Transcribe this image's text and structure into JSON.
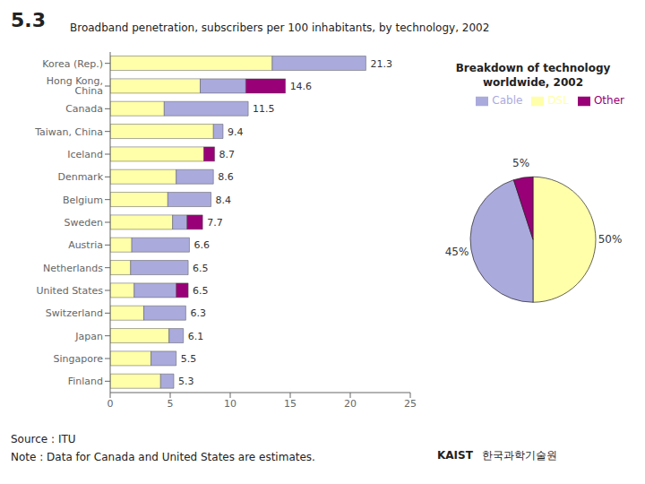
{
  "chart_data": [
    {
      "type": "bar",
      "orientation": "horizontal",
      "stacked": true,
      "title": "Broadband penetration, subscribers per 100 inhabitants, by technology, 2002",
      "categories": [
        "Korea (Rep.)",
        "Hong Kong, China",
        "Canada",
        "Taiwan, China",
        "Iceland",
        "Denmark",
        "Belgium",
        "Sweden",
        "Austria",
        "Netherlands",
        "United States",
        "Switzerland",
        "Japan",
        "Singapore",
        "Finland"
      ],
      "series": [
        {
          "name": "DSL",
          "color": "#ffffaa",
          "values": [
            13.5,
            7.5,
            4.5,
            8.6,
            7.8,
            5.5,
            4.8,
            5.2,
            1.8,
            1.7,
            2.0,
            2.8,
            4.9,
            3.4,
            4.2
          ]
        },
        {
          "name": "Cable",
          "color": "#aaaadd",
          "values": [
            7.8,
            3.8,
            7.0,
            0.8,
            0.0,
            3.1,
            3.6,
            1.2,
            4.8,
            4.8,
            3.5,
            3.5,
            1.2,
            2.1,
            1.1
          ]
        },
        {
          "name": "Other",
          "color": "#990077",
          "values": [
            0.0,
            3.3,
            0.0,
            0.0,
            0.9,
            0.0,
            0.0,
            1.3,
            0.0,
            0.0,
            1.0,
            0.0,
            0.0,
            0.0,
            0.0
          ]
        }
      ],
      "totals": [
        21.3,
        14.6,
        11.5,
        9.4,
        8.7,
        8.6,
        8.4,
        7.7,
        6.6,
        6.5,
        6.5,
        6.3,
        6.1,
        5.5,
        5.3
      ],
      "xlim": [
        0,
        25
      ],
      "xticks": [
        0,
        5,
        10,
        15,
        20,
        25
      ],
      "grid": false,
      "annotations": [
        "5.3",
        "Source : ITU",
        "Note : Data for Canada and United States are estimates.",
        "KAIST",
        "한국과학기술원"
      ]
    },
    {
      "type": "pie",
      "title": "Breakdown of technology\nworldwide, 2002",
      "categories": [
        "DSL",
        "Cable",
        "Other"
      ],
      "values": [
        50,
        45,
        5
      ],
      "value_labels": [
        "50%",
        "45%",
        "5%"
      ],
      "colors": [
        "#ffffaa",
        "#aaaadd",
        "#990077"
      ],
      "data_labels": true,
      "legend": "upper right"
    }
  ]
}
